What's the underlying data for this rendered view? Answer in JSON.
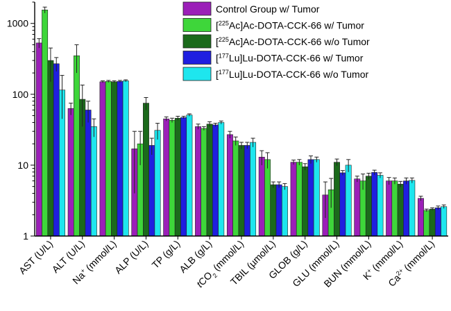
{
  "chart_data": {
    "type": "bar",
    "title": "",
    "xlabel": "",
    "ylabel": "",
    "yscale": "log",
    "ylim": [
      1,
      2000
    ],
    "ytick_values": [
      1,
      10,
      100,
      1000
    ],
    "ytick_labels": [
      "1",
      "10",
      "100",
      "1000"
    ],
    "categories": [
      "AST (U/L)",
      "ALT (U/L)",
      "Na+ (mmol/L)",
      "ALP (U/L)",
      "TP (g/L)",
      "ALB (g/L)",
      "tCO2 (mmol/L)",
      "TBIL (µmol/L)",
      "GLOB (g/L)",
      "GLU (mmol/L)",
      "BUN (mmol/L)",
      "K+ (mmol/L)",
      "Ca2+ (mmol/L)"
    ],
    "category_parts": [
      [
        {
          "t": "AST (U/L)"
        }
      ],
      [
        {
          "t": "ALT (U/L)"
        }
      ],
      [
        {
          "t": "Na"
        },
        {
          "t": "+",
          "s": "sup"
        },
        {
          "t": " (mmol/L)"
        }
      ],
      [
        {
          "t": "ALP (U/L)"
        }
      ],
      [
        {
          "t": "TP (g/L)"
        }
      ],
      [
        {
          "t": "ALB (g/L)"
        }
      ],
      [
        {
          "t": "t",
          "s": "it"
        },
        {
          "t": "CO"
        },
        {
          "t": "2",
          "s": "sub"
        },
        {
          "t": " (mmol/L)"
        }
      ],
      [
        {
          "t": "TBIL (µmol/L)"
        }
      ],
      [
        {
          "t": "GLOB (g/L)"
        }
      ],
      [
        {
          "t": "GLU (mmol/L)"
        }
      ],
      [
        {
          "t": "BUN (mmol/L)"
        }
      ],
      [
        {
          "t": "K"
        },
        {
          "t": "+",
          "s": "sup"
        },
        {
          "t": " (mmol/L)"
        }
      ],
      [
        {
          "t": "Ca"
        },
        {
          "t": "2+",
          "s": "sup"
        },
        {
          "t": " (mmol/L)"
        }
      ]
    ],
    "legend_position": "top-right",
    "series": [
      {
        "name": "Control Group w/ Tumor",
        "name_parts": [
          {
            "t": "Control Group w/ Tumor"
          }
        ],
        "color": "#9b1fb8",
        "values": [
          530,
          63,
          150,
          17,
          45,
          35,
          27,
          13,
          11,
          3.8,
          6.4,
          6.0,
          3.4
        ],
        "errors": [
          80,
          12,
          5,
          13,
          3,
          3,
          3,
          3,
          0.8,
          2.0,
          0.6,
          0.7,
          0.25
        ]
      },
      {
        "name": "[225Ac]Ac-DOTA-CCK-66 w/ Tumor",
        "name_parts": [
          {
            "t": "["
          },
          {
            "t": "225",
            "s": "sup"
          },
          {
            "t": "Ac]Ac-DOTA-CCK-66 w/ Tumor"
          }
        ],
        "color": "#3ed63a",
        "values": [
          1550,
          350,
          152,
          20,
          43,
          33,
          22,
          12,
          11,
          4.5,
          6.0,
          6.0,
          2.3
        ],
        "errors": [
          150,
          150,
          5,
          10,
          3,
          2,
          3,
          3,
          1.0,
          2.0,
          1.5,
          0.6,
          0.1
        ]
      },
      {
        "name": "[225Ac]Ac-DOTA-CCK-66 w/o Tumor",
        "name_parts": [
          {
            "t": "["
          },
          {
            "t": "225",
            "s": "sup"
          },
          {
            "t": "Ac]Ac-DOTA-CCK-66 w/o Tumor"
          }
        ],
        "color": "#1b6a1b",
        "values": [
          300,
          85,
          150,
          75,
          46,
          38,
          19,
          5.3,
          9.5,
          11,
          7.0,
          5.4,
          2.4
        ],
        "errors": [
          150,
          50,
          5,
          15,
          3,
          3,
          2,
          0.5,
          1.0,
          1.2,
          0.7,
          0.5,
          0.1
        ]
      },
      {
        "name": "[177Lu]Lu-DOTA-CCK-66 w/ Tumor",
        "name_parts": [
          {
            "t": "["
          },
          {
            "t": "177",
            "s": "sup"
          },
          {
            "t": "Lu]Lu-DOTA-CCK-66 w/ Tumor"
          }
        ],
        "color": "#1f1fe0",
        "values": [
          270,
          60,
          152,
          19,
          47,
          37,
          19,
          5.3,
          12,
          7.8,
          7.9,
          6.0,
          2.5
        ],
        "errors": [
          60,
          20,
          5,
          5,
          2,
          2,
          2,
          0.5,
          1.5,
          0.6,
          0.6,
          0.6,
          0.15
        ]
      },
      {
        "name": "[177Lu]Lu-DOTA-CCK-66 w/o Tumor",
        "name_parts": [
          {
            "t": "["
          },
          {
            "t": "177",
            "s": "sup"
          },
          {
            "t": "Lu]Lu-DOTA-CCK-66 w/o Tumor"
          }
        ],
        "color": "#1ee6ee",
        "values": [
          115,
          35,
          155,
          31,
          51,
          40,
          21,
          5.0,
          12,
          10,
          7.2,
          6.1,
          2.6
        ],
        "errors": [
          70,
          10,
          5,
          8,
          2,
          2,
          3,
          0.5,
          1.0,
          2.0,
          0.6,
          0.5,
          0.15
        ]
      }
    ]
  }
}
